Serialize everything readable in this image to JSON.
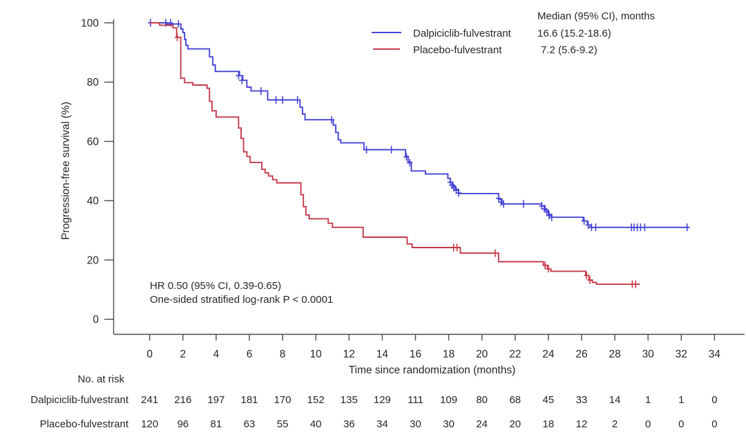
{
  "figure": {
    "y_axis_label": "Progression-free survival (%)",
    "x_axis_label": "Time since randomization (months)",
    "annotation": {
      "line1": "HR 0.50 (95% CI, 0.39-0.65)",
      "line2": "One-sided stratified log-rank P < 0.0001"
    },
    "legend": {
      "median_header": "Median (95% CI), months",
      "entries": [
        {
          "label": "Dalpiciclib-fulvestrant",
          "median": "16.6 (15.2-18.6)",
          "color": "#4543d5"
        },
        {
          "label": "Placebo-fulvestrant",
          "median": "7.2 (5.6-9.2)",
          "color": "#c63a49"
        }
      ]
    },
    "at_risk": {
      "title": "No. at risk",
      "rows": [
        {
          "label": "Dalpiciclib-fulvestrant",
          "counts": [
            241,
            216,
            197,
            181,
            170,
            152,
            135,
            129,
            111,
            109,
            80,
            68,
            45,
            33,
            14,
            1,
            1,
            0
          ]
        },
        {
          "label": "Placebo-fulvestrant",
          "counts": [
            120,
            96,
            81,
            63,
            55,
            40,
            36,
            34,
            30,
            30,
            24,
            20,
            18,
            12,
            2,
            0,
            0,
            0
          ]
        }
      ]
    }
  },
  "chart_data": {
    "type": "line",
    "subtype": "kaplan-meier-step",
    "title": "",
    "xlabel": "Time since randomization (months)",
    "ylabel": "Progression-free survival (%)",
    "xlim": [
      0,
      34
    ],
    "ylim": [
      0,
      100
    ],
    "xticks": [
      0,
      2,
      4,
      6,
      8,
      10,
      12,
      14,
      16,
      18,
      20,
      22,
      24,
      26,
      28,
      30,
      32,
      34
    ],
    "yticks": [
      0,
      20,
      40,
      60,
      80,
      100
    ],
    "grid": false,
    "legend_position": "top-right",
    "axis_color": "#4a4a4a",
    "hr_text": "HR 0.50 (95% CI, 0.39-0.65)",
    "p_text": "One-sided stratified log-rank P < 0.0001",
    "series": [
      {
        "name": "Dalpiciclib-fulvestrant",
        "color": "#4543d5",
        "median_95ci_months": "16.6 (15.2-18.6)",
        "steps": [
          [
            0,
            100
          ],
          [
            1.0,
            99.6
          ],
          [
            1.88,
            97.9
          ],
          [
            2.0,
            96.7
          ],
          [
            2.1,
            94.4
          ],
          [
            2.18,
            92.4
          ],
          [
            2.3,
            91.2
          ],
          [
            3.6,
            88.5
          ],
          [
            3.8,
            85.8
          ],
          [
            3.95,
            83.6
          ],
          [
            5.4,
            82.2
          ],
          [
            5.6,
            80.6
          ],
          [
            5.85,
            78.3
          ],
          [
            6.1,
            77.0
          ],
          [
            7.1,
            74.0
          ],
          [
            9.05,
            71.5
          ],
          [
            9.2,
            69.2
          ],
          [
            9.35,
            67.3
          ],
          [
            11.05,
            65.5
          ],
          [
            11.2,
            63.0
          ],
          [
            11.35,
            60.5
          ],
          [
            11.5,
            59.5
          ],
          [
            12.9,
            57.2
          ],
          [
            15.4,
            55.0
          ],
          [
            15.55,
            53.0
          ],
          [
            15.75,
            50.0
          ],
          [
            16.6,
            49.0
          ],
          [
            17.95,
            47.5
          ],
          [
            18.1,
            46.2
          ],
          [
            18.25,
            45.0
          ],
          [
            18.4,
            43.8
          ],
          [
            18.6,
            42.4
          ],
          [
            21.0,
            40.5
          ],
          [
            21.2,
            38.9
          ],
          [
            23.6,
            38.2
          ],
          [
            23.8,
            36.8
          ],
          [
            24.0,
            35.3
          ],
          [
            24.2,
            34.4
          ],
          [
            26.1,
            33.2
          ],
          [
            26.35,
            31.8
          ],
          [
            26.55,
            31.0
          ],
          [
            32.45,
            31.0
          ]
        ],
        "censors": [
          [
            0.05,
            100
          ],
          [
            0.97,
            100
          ],
          [
            1.25,
            100
          ],
          [
            1.73,
            99.6
          ],
          [
            5.35,
            82.2
          ],
          [
            5.55,
            80.6
          ],
          [
            6.7,
            77.0
          ],
          [
            7.6,
            74.0
          ],
          [
            8.0,
            74.0
          ],
          [
            8.9,
            74.0
          ],
          [
            10.95,
            67.3
          ],
          [
            13.05,
            57.2
          ],
          [
            14.55,
            57.2
          ],
          [
            15.45,
            54.8
          ],
          [
            15.65,
            52.8
          ],
          [
            18.1,
            46.2
          ],
          [
            18.2,
            45.2
          ],
          [
            18.3,
            44.4
          ],
          [
            18.45,
            43.5
          ],
          [
            18.6,
            42.6
          ],
          [
            21.0,
            40.8
          ],
          [
            21.15,
            39.5
          ],
          [
            21.3,
            38.9
          ],
          [
            22.5,
            38.9
          ],
          [
            23.6,
            38.2
          ],
          [
            23.75,
            37.3
          ],
          [
            23.9,
            36.2
          ],
          [
            24.05,
            35.0
          ],
          [
            24.2,
            34.4
          ],
          [
            26.15,
            33.2
          ],
          [
            26.4,
            31.8
          ],
          [
            26.6,
            31.0
          ],
          [
            26.85,
            31.0
          ],
          [
            29.0,
            31.0
          ],
          [
            29.15,
            31.0
          ],
          [
            29.35,
            31.0
          ],
          [
            29.55,
            31.0
          ],
          [
            29.8,
            31.0
          ],
          [
            32.35,
            31.0
          ]
        ]
      },
      {
        "name": "Placebo-fulvestrant",
        "color": "#c63a49",
        "median_95ci_months": "7.2 (5.6-9.2)",
        "steps": [
          [
            0,
            100
          ],
          [
            0.6,
            99.2
          ],
          [
            1.4,
            98.3
          ],
          [
            1.62,
            95.1
          ],
          [
            1.87,
            81.3
          ],
          [
            2.1,
            79.8
          ],
          [
            2.6,
            79.0
          ],
          [
            3.45,
            77.9
          ],
          [
            3.6,
            73.5
          ],
          [
            3.75,
            70.3
          ],
          [
            4.0,
            68.2
          ],
          [
            5.35,
            64.5
          ],
          [
            5.5,
            61.0
          ],
          [
            5.65,
            56.5
          ],
          [
            5.85,
            54.9
          ],
          [
            6.05,
            52.9
          ],
          [
            6.75,
            50.6
          ],
          [
            6.95,
            49.4
          ],
          [
            7.15,
            48.3
          ],
          [
            7.4,
            47.1
          ],
          [
            7.65,
            46.0
          ],
          [
            9.1,
            42.0
          ],
          [
            9.25,
            38.0
          ],
          [
            9.4,
            35.2
          ],
          [
            9.6,
            33.9
          ],
          [
            10.75,
            32.4
          ],
          [
            11.0,
            31.0
          ],
          [
            12.85,
            27.7
          ],
          [
            15.5,
            25.4
          ],
          [
            15.8,
            24.2
          ],
          [
            18.7,
            22.3
          ],
          [
            21.0,
            19.4
          ],
          [
            23.7,
            18.2
          ],
          [
            23.95,
            17.0
          ],
          [
            24.15,
            16.2
          ],
          [
            26.25,
            14.8
          ],
          [
            26.45,
            13.2
          ],
          [
            26.65,
            12.4
          ],
          [
            26.9,
            11.8
          ],
          [
            29.5,
            11.8
          ]
        ],
        "censors": [
          [
            1.66,
            95.1
          ],
          [
            18.3,
            24.2
          ],
          [
            18.5,
            24.2
          ],
          [
            20.8,
            22.3
          ],
          [
            23.8,
            18.2
          ],
          [
            24.0,
            17.0
          ],
          [
            26.3,
            14.8
          ],
          [
            26.5,
            13.2
          ],
          [
            29.05,
            11.8
          ],
          [
            29.25,
            11.8
          ]
        ]
      }
    ]
  }
}
